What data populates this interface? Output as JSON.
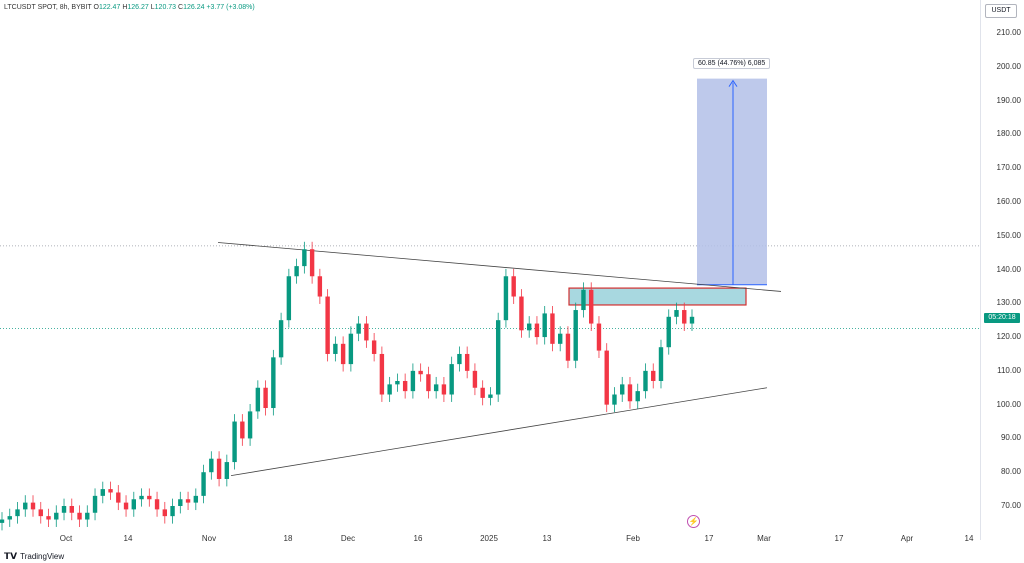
{
  "legend": {
    "symbol": "LTCUSDT SPOT, 8h, BYBIT",
    "open_label": "O",
    "open": "122.47",
    "high_label": "H",
    "high": "126.27",
    "low_label": "L",
    "low": "120.73",
    "close_label": "C",
    "close": "126.24",
    "change": "+3.77 (+3.08%)"
  },
  "currency": "USDT",
  "last_price_countdown": "05:20:18",
  "measure_label": "60.85 (44.76%) 6,085",
  "footer": {
    "brand": "TradingView"
  },
  "chart_data": {
    "type": "line",
    "title": "LTCUSDT SPOT, 8h, BYBIT",
    "y_ticks": [
      "210.00",
      "200.00",
      "190.00",
      "180.00",
      "170.00",
      "160.00",
      "150.00",
      "140.00",
      "130.00",
      "120.00",
      "110.00",
      "100.00",
      "90.00",
      "80.00",
      "70.00"
    ],
    "x_ticks": [
      "Oct",
      "14",
      "Nov",
      "18",
      "Dec",
      "16",
      "2025",
      "13",
      "Feb",
      "17",
      "Mar",
      "17",
      "Apr",
      "14"
    ],
    "ylim": [
      63,
      217
    ],
    "series": [
      {
        "values": [
          66,
          67,
          69,
          71,
          69,
          67,
          66,
          68,
          70,
          68,
          66,
          68,
          73,
          75,
          74,
          71,
          69,
          72,
          73,
          72,
          69,
          67,
          70,
          72,
          71,
          73,
          80,
          84,
          78,
          83,
          95,
          90,
          98,
          105,
          99,
          114,
          125,
          138,
          141,
          146,
          138,
          132,
          115,
          118,
          112,
          121,
          124,
          119,
          115,
          103,
          106,
          107,
          104,
          110,
          109,
          104,
          106,
          103,
          112,
          115,
          110,
          105,
          102,
          103,
          125,
          138,
          132,
          122,
          124,
          120,
          127,
          118,
          121,
          113,
          128,
          134,
          124,
          116,
          100,
          103,
          106,
          101,
          104,
          110,
          107,
          117,
          126,
          128,
          124,
          126
        ]
      }
    ],
    "annotations": {
      "resistance_line": [
        148,
        133.5
      ],
      "support_line": [
        79,
        105
      ],
      "supply_zone": [
        129.5,
        134.5
      ],
      "target_box": [
        135.5,
        196.5
      ],
      "horizontal_level": 147,
      "last_price_level": 122.5
    },
    "colors": {
      "up": "#089981",
      "down": "#f23645",
      "zone_fill": "#a8d8e0",
      "zone_border": "#d32f2f",
      "target_fill": "#b3c0e8",
      "target_line": "#2962ff"
    },
    "grid": false
  }
}
